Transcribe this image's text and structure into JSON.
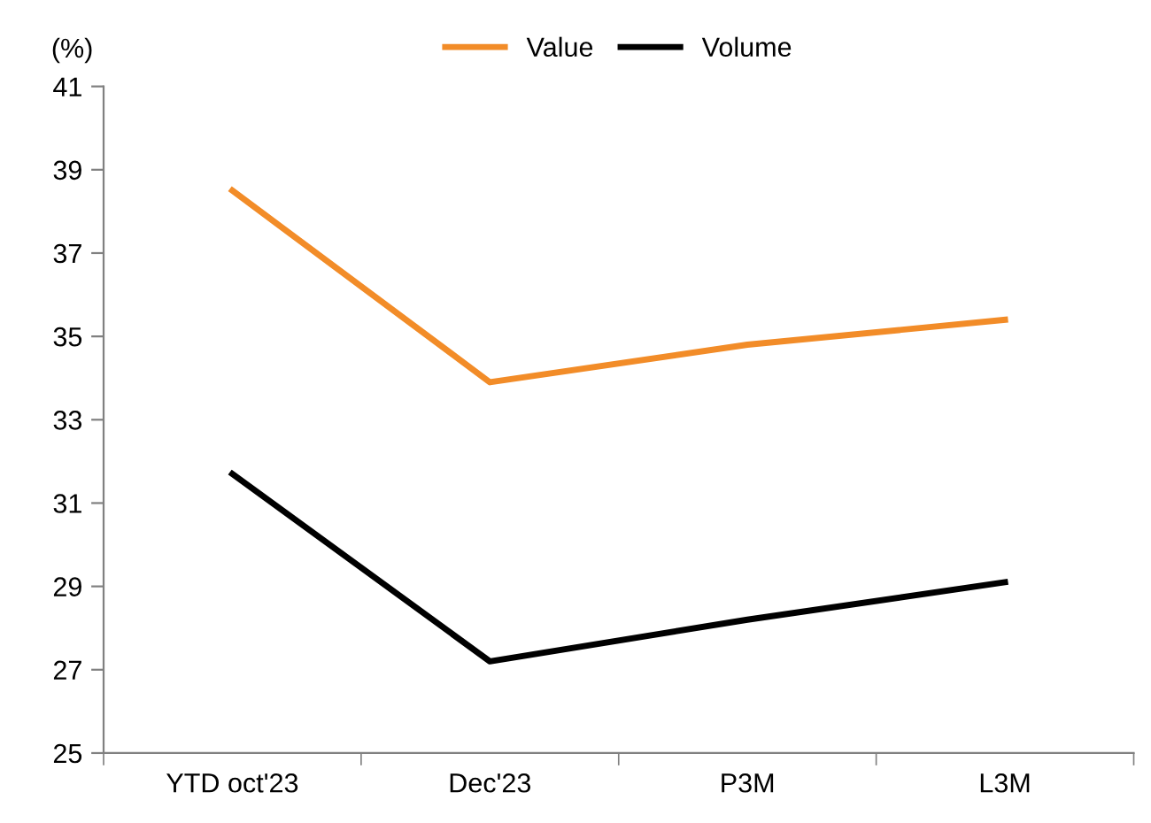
{
  "chart_data": {
    "type": "line",
    "ylabel": "(%)",
    "categories": [
      "YTD oct'23",
      "Dec'23",
      "P3M",
      "L3M"
    ],
    "series": [
      {
        "name": "Value",
        "color": "#f28c28",
        "values": [
          38.5,
          33.9,
          34.8,
          35.4
        ]
      },
      {
        "name": "Volume",
        "color": "#000000",
        "values": [
          31.7,
          27.2,
          28.2,
          29.1
        ]
      }
    ],
    "ylim": [
      25,
      41
    ],
    "yticks": [
      25,
      27,
      29,
      31,
      33,
      35,
      37,
      39,
      41
    ],
    "grid": false,
    "legend": "top",
    "marker": "none",
    "line_style": "solid"
  }
}
